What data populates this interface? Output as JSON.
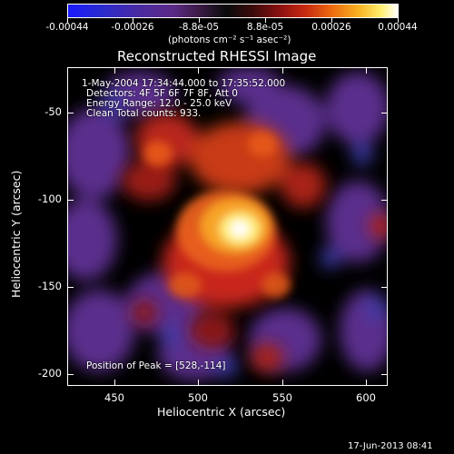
{
  "colorbar": {
    "tick_labels": [
      "-0.00044",
      "-0.00026",
      "-8.8e-05",
      "8.8e-05",
      "0.00026",
      "0.00044"
    ],
    "unit_label": "(photons cm⁻² s⁻¹ asec⁻²)"
  },
  "chart_data": {
    "type": "heatmap",
    "title": "Reconstructed RHESSI Image",
    "xlabel": "Heliocentric X (arcsec)",
    "ylabel": "Heliocentric Y (arcsec)",
    "xlim": [
      422,
      613
    ],
    "ylim": [
      -207,
      -24
    ],
    "x_ticks": [
      450,
      500,
      550,
      600
    ],
    "y_ticks": [
      -50,
      -100,
      -150,
      -200
    ],
    "colorbar_range": [
      -0.00044,
      0.00044
    ],
    "colormap": "blue-purple-black-red-yellow-white",
    "peak": {
      "x": 528,
      "y": -114
    },
    "annotations": [
      "1-May-2004 17:34:44.000 to 17:35:52.000",
      "Detectors: 4F 5F 6F 7F 8F, Att 0",
      "Energy Range: 12.0 - 25.0 keV",
      "Clean     Total counts: 933.",
      "Position of Peak = [528,-114]"
    ]
  },
  "footer": {
    "timestamp": "17-Jun-2013 08:41"
  }
}
